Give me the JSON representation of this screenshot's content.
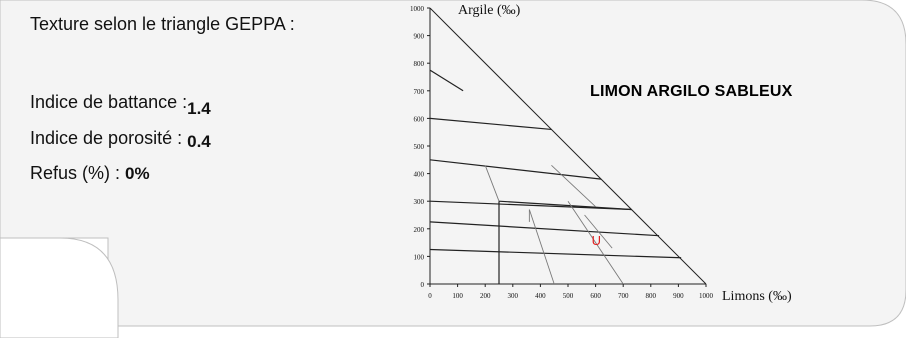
{
  "header": {
    "title": "Texture selon le triangle GEPPA :"
  },
  "metrics": [
    {
      "label": "Indice de battance :",
      "value": "1.4"
    },
    {
      "label": "Indice de porosité : ",
      "value": "0.4"
    },
    {
      "label": "Refus (%) :  ",
      "value": "0%"
    }
  ],
  "texture_class": "LIMON ARGILO SABLEUX",
  "colors": {
    "card_bg": "#f4f4f4",
    "card_border": "#bfbfbf",
    "marker": "#e02020"
  },
  "chart_data": {
    "type": "scatter",
    "title": "",
    "ylabel": "Argile  (‰)",
    "xlabel": "Limons (‰)",
    "xlim": [
      0,
      1000
    ],
    "ylim": [
      0,
      1000
    ],
    "xticks": [
      "0",
      "100",
      "200",
      "300",
      "400",
      "500",
      "600",
      "700",
      "800",
      "900",
      "1000"
    ],
    "yticks": [
      "0",
      "100",
      "200",
      "300",
      "400",
      "500",
      "600",
      "700",
      "800",
      "900",
      "1000"
    ],
    "point": {
      "x": 600,
      "y": 160,
      "marker": "U"
    }
  }
}
